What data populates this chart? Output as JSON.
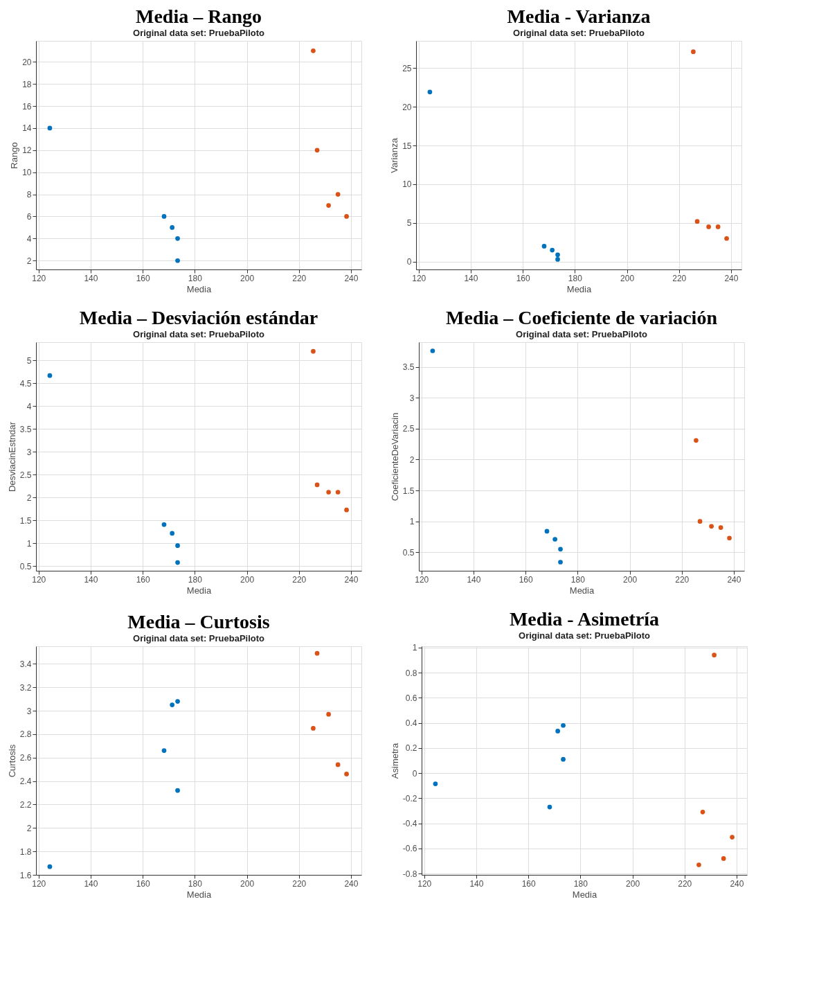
{
  "chart_data": [
    {
      "type": "scatter",
      "title": "Media – Rango",
      "subtitle": "Original data set: PruebaPiloto",
      "xlabel": "Media",
      "ylabel": "Rango",
      "xlim": [
        119,
        244
      ],
      "xticks": [
        120,
        140,
        160,
        180,
        200,
        220,
        240
      ],
      "ylim": [
        1.2,
        21.9
      ],
      "yticks": [
        2,
        4,
        6,
        8,
        10,
        12,
        14,
        16,
        18,
        20
      ],
      "grid": true,
      "legend": false,
      "marker": "circle",
      "series": [
        {
          "color": "#0072bd",
          "x": [
            124.3,
            168.2,
            171.3,
            173.4,
            173.4
          ],
          "values": [
            14,
            6,
            5,
            4,
            2
          ]
        },
        {
          "color": "#d95319",
          "x": [
            225.5,
            227,
            231.4,
            235,
            238.3
          ],
          "values": [
            21,
            12,
            7,
            8,
            6
          ]
        }
      ]
    },
    {
      "type": "scatter",
      "title": "Media - Varianza",
      "subtitle": "Original data set: PruebaPiloto",
      "xlabel": "Media",
      "ylabel": "Varianza",
      "xlim": [
        119,
        244
      ],
      "xticks": [
        120,
        140,
        160,
        180,
        200,
        220,
        240
      ],
      "ylim": [
        -1,
        28.5
      ],
      "yticks": [
        0,
        5,
        10,
        15,
        20,
        25
      ],
      "grid": true,
      "legend": false,
      "marker": "circle",
      "series": [
        {
          "color": "#0072bd",
          "x": [
            124.3,
            168.2,
            171.3,
            173.4,
            173.4
          ],
          "values": [
            21.9,
            2.0,
            1.5,
            0.9,
            0.3
          ]
        },
        {
          "color": "#d95319",
          "x": [
            225.5,
            227,
            231.4,
            235,
            238.3
          ],
          "values": [
            27.1,
            5.2,
            4.5,
            4.5,
            3.0
          ]
        }
      ]
    },
    {
      "type": "scatter",
      "title": "Media – Desviación estándar",
      "subtitle": "Original data set: PruebaPiloto",
      "xlabel": "Media",
      "ylabel": "DesviacinEstndar",
      "xlim": [
        119,
        244
      ],
      "xticks": [
        120,
        140,
        160,
        180,
        200,
        220,
        240
      ],
      "ylim": [
        0.4,
        5.4
      ],
      "yticks": [
        0.5,
        1,
        1.5,
        2,
        2.5,
        3,
        3.5,
        4,
        4.5,
        5
      ],
      "grid": true,
      "legend": false,
      "marker": "circle",
      "series": [
        {
          "color": "#0072bd",
          "x": [
            124.3,
            168.2,
            171.3,
            173.4,
            173.4
          ],
          "values": [
            4.67,
            1.41,
            1.22,
            0.95,
            0.58
          ]
        },
        {
          "color": "#d95319",
          "x": [
            225.5,
            227,
            231.4,
            235,
            238.3
          ],
          "values": [
            5.2,
            2.28,
            2.12,
            2.12,
            1.73
          ]
        }
      ]
    },
    {
      "type": "scatter",
      "title": "Media – Coeficiente de variación",
      "subtitle": "Original data set: PruebaPiloto",
      "xlabel": "Media",
      "ylabel": "CoeficienteDeVariacin",
      "xlim": [
        119,
        244
      ],
      "xticks": [
        120,
        140,
        160,
        180,
        200,
        220,
        240
      ],
      "ylim": [
        0.2,
        3.9
      ],
      "yticks": [
        0.5,
        1,
        1.5,
        2,
        2.5,
        3,
        3.5
      ],
      "grid": true,
      "legend": false,
      "marker": "circle",
      "series": [
        {
          "color": "#0072bd",
          "x": [
            124.3,
            168.2,
            171.3,
            173.4,
            173.4
          ],
          "values": [
            3.76,
            0.84,
            0.71,
            0.55,
            0.34
          ]
        },
        {
          "color": "#d95319",
          "x": [
            225.5,
            227,
            231.4,
            235,
            238.3
          ],
          "values": [
            2.31,
            1.0,
            0.92,
            0.9,
            0.73
          ]
        }
      ]
    },
    {
      "type": "scatter",
      "title": "Media – Curtosis",
      "subtitle": "Original data set: PruebaPiloto",
      "xlabel": "Media",
      "ylabel": "Curtosis",
      "xlim": [
        119,
        244
      ],
      "xticks": [
        120,
        140,
        160,
        180,
        200,
        220,
        240
      ],
      "ylim": [
        1.6,
        3.55
      ],
      "yticks": [
        1.6,
        1.8,
        2,
        2.2,
        2.4,
        2.6,
        2.8,
        3,
        3.2,
        3.4
      ],
      "grid": true,
      "legend": false,
      "marker": "circle",
      "series": [
        {
          "color": "#0072bd",
          "x": [
            124.3,
            168.2,
            171.3,
            173.4,
            173.4
          ],
          "values": [
            1.67,
            2.66,
            3.05,
            3.08,
            2.32
          ]
        },
        {
          "color": "#d95319",
          "x": [
            225.5,
            227,
            231.4,
            235,
            238.3
          ],
          "values": [
            2.85,
            3.49,
            2.97,
            2.54,
            2.46
          ]
        }
      ]
    },
    {
      "type": "scatter",
      "title": "Media - Asimetría",
      "subtitle": "Original data set: PruebaPiloto",
      "xlabel": "Media",
      "ylabel": "Asimetra",
      "xlim": [
        119,
        244
      ],
      "xticks": [
        120,
        140,
        160,
        180,
        200,
        220,
        240
      ],
      "ylim": [
        -0.81,
        1.01
      ],
      "yticks": [
        -0.8,
        -0.6,
        -0.4,
        -0.2,
        0,
        0.2,
        0.4,
        0.6,
        0.8,
        1
      ],
      "grid": true,
      "legend": false,
      "marker": "circle",
      "series": [
        {
          "color": "#0072bd",
          "x": [
            124.3,
            168.2,
            171.3,
            173.4,
            173.4
          ],
          "values": [
            -0.085,
            -0.27,
            0.335,
            0.38,
            0.11
          ]
        },
        {
          "color": "#d95319",
          "x": [
            225.5,
            227,
            231.4,
            235,
            238.3
          ],
          "values": [
            -0.73,
            -0.31,
            0.94,
            -0.68,
            -0.51
          ]
        }
      ]
    }
  ]
}
